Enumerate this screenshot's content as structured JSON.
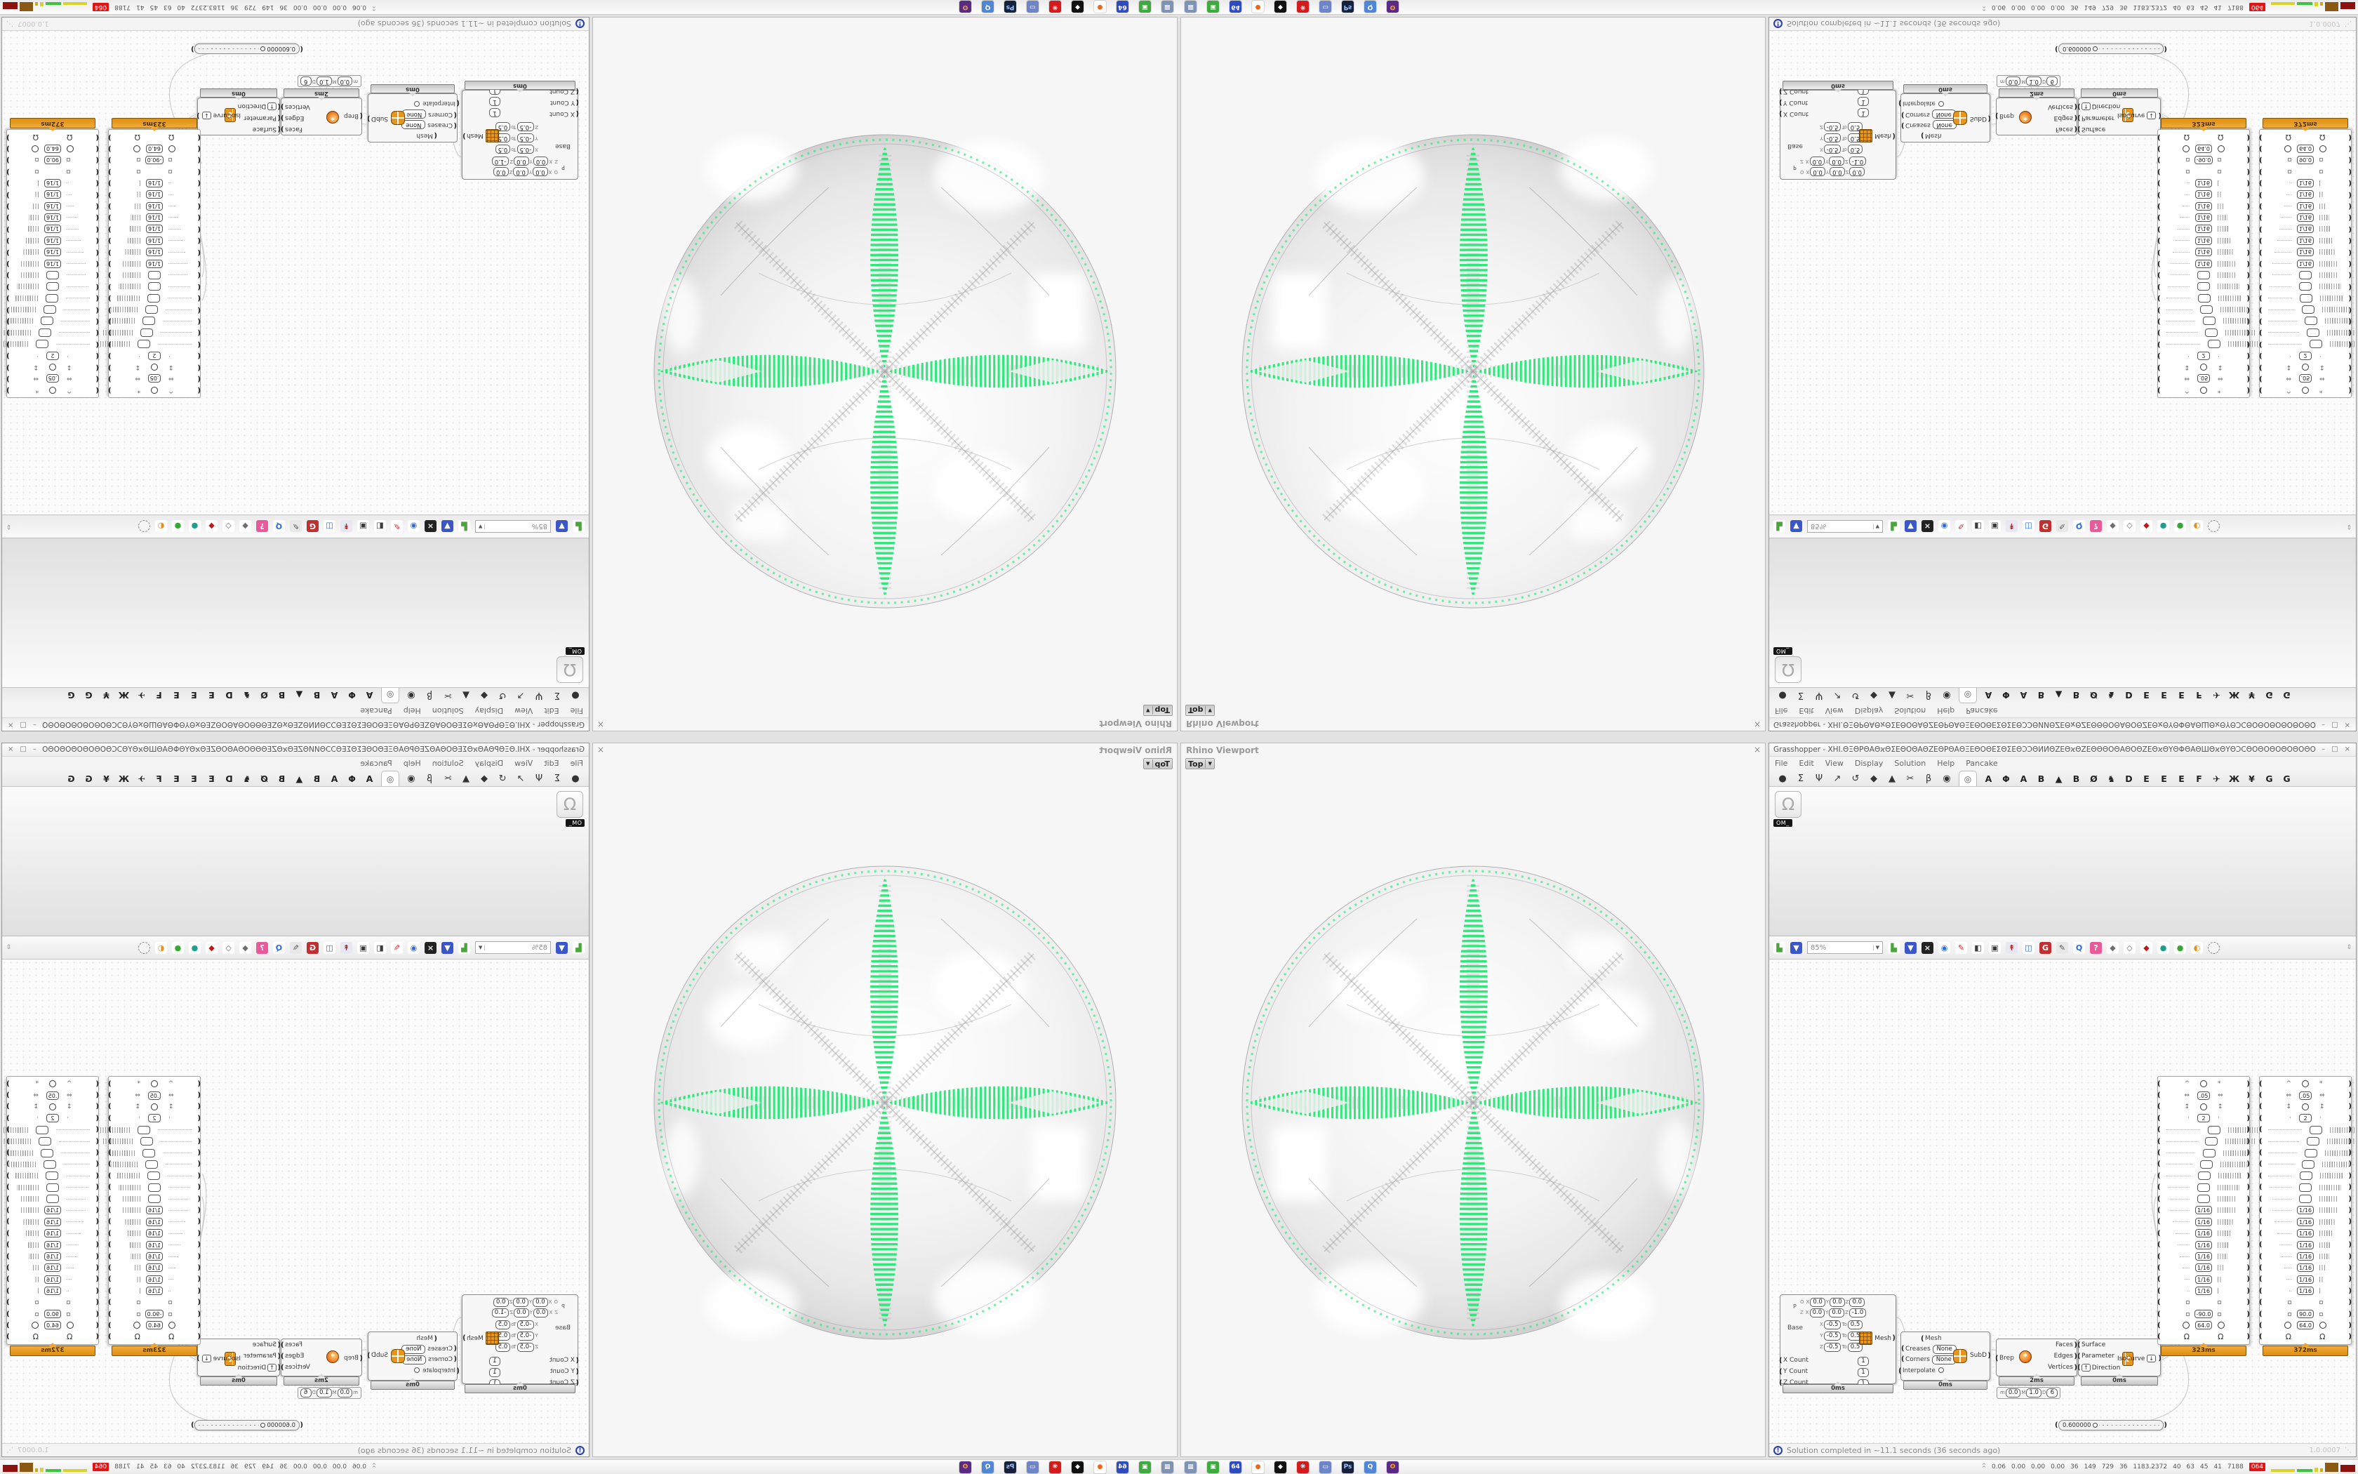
{
  "rhino": {
    "title": "Rhino Viewport",
    "viewport": "Top",
    "dropdown_arrow": "▼",
    "close": "×"
  },
  "gh": {
    "title": "Grasshopper - ΧΗΙ.ΘΞΘΡΘΑΘϰΘΣΕΘΟΘΑΘΖΕΘΡΘΑΘΞΕΘΟΘΕΣΘΣΕΘϽϽΘИИΘΖΕΘϰΘΖΕΘΘΘΟΘΑΘΟΘΖΕΘϰΘΥΘΦΘΑΘШΘϰΘΥΘϽϹΘΟΘΟΘΟΘΟΘΟΘΟΘΟΘΟΘΟΘΟΘΟΘΟΘΟΘΟΘΟΘΟΘΟ…",
    "window_buttons": [
      "–",
      "□",
      "×"
    ],
    "menu": [
      "File",
      "Edit",
      "View",
      "Display",
      "Solution",
      "Help",
      "Pancake"
    ],
    "category_tabs": [
      "●",
      "Σ",
      "Ψ",
      "↗",
      "↺",
      "◆",
      "▲",
      "✂",
      "β",
      "◉"
    ],
    "selected_tab": "◎",
    "plugin_tabs": [
      "A",
      "Φ",
      "A",
      "B",
      "▲",
      "B",
      "Ø",
      "♞",
      "D",
      "E",
      "E",
      "E",
      "F",
      "✈",
      "Ж",
      "¥",
      "G",
      "G"
    ],
    "palette": {
      "item_glyph": "Ω",
      "item_label": "OM_"
    },
    "toolbar": {
      "zoom": "85%",
      "icons": [
        {
          "name": "open-file-icon",
          "glyph": "▙",
          "bg": "#ffffff",
          "fg": "#4aa53c"
        },
        {
          "name": "save-file-icon",
          "glyph": "▼",
          "bg": "#3a56c8",
          "fg": "#ffffff"
        },
        {
          "name": "zoom-extents-icon",
          "glyph": "×",
          "bg": "#222222",
          "fg": "#ffffff"
        },
        {
          "name": "preview-eye-icon",
          "glyph": "◉",
          "bg": "#ffffff",
          "fg": "#2b6bd8"
        },
        {
          "name": "paint-brush-icon",
          "glyph": "✎",
          "bg": "#ffffff",
          "fg": "#c82222"
        },
        {
          "name": "preview-plug-icon",
          "glyph": "◧",
          "bg": "#ffffff",
          "fg": "#3a3a3a"
        },
        {
          "name": "camera-icon",
          "glyph": "▣",
          "bg": "#ffffff",
          "fg": "#3a3a3a"
        },
        {
          "name": "remote-control-icon",
          "glyph": "↟",
          "bg": "#e8e8f4",
          "fg": "#b02020"
        },
        {
          "name": "web-doc-icon",
          "glyph": "◫",
          "bg": "#ffffff",
          "fg": "#2b6bd8"
        },
        {
          "name": "gha-installer-icon",
          "glyph": "G",
          "bg": "#c03030",
          "fg": "#ffffff"
        },
        {
          "name": "annotate-icon",
          "glyph": "✎",
          "bg": "#e8e8e8",
          "fg": "#555555"
        },
        {
          "name": "finder-icon",
          "glyph": "Q",
          "bg": "#ffffff",
          "fg": "#2b6bd8"
        },
        {
          "name": "help-package-icon",
          "glyph": "?",
          "bg": "#e85a9a",
          "fg": "#ffffff"
        },
        {
          "name": "cluster-gray-icon",
          "glyph": "◆",
          "bg": "#ffffff",
          "fg": "#6e6e6e"
        },
        {
          "name": "cluster-white-icon",
          "glyph": "◇",
          "bg": "#ffffff",
          "fg": "#6e6e6e"
        },
        {
          "name": "jewel-red-icon",
          "glyph": "◆",
          "bg": "#ffffff",
          "fg": "#c01818"
        },
        {
          "name": "knob-teal-icon",
          "glyph": "●",
          "bg": "#ffffff",
          "fg": "#1f9e8e"
        },
        {
          "name": "knob-green-icon",
          "glyph": "●",
          "bg": "#ffffff",
          "fg": "#35a832"
        },
        {
          "name": "knob-orange-icon",
          "glyph": "◐",
          "bg": "#ffffff",
          "fg": "#e09020"
        },
        {
          "name": "lasso-select-icon",
          "glyph": "",
          "bg": "#f5f5f5",
          "fg": "#888888"
        }
      ],
      "scroll_nub": "⇕"
    },
    "status": {
      "icon": "!",
      "text": "Solution completed in ~11.1 seconds (36 seconds ago)",
      "version": "1.0.0007",
      "grip": "⋱"
    },
    "canvas": {
      "meshbox": {
        "p_label": "P",
        "plane_rows": [
          {
            "k": "O",
            "cells": [
              [
                "X",
                "0.0"
              ],
              [
                "Y",
                "0.0"
              ],
              [
                "Z",
                "0.0"
              ]
            ]
          },
          {
            "k": "Z",
            "cells": [
              [
                "X",
                "0.0"
              ],
              [
                "Y",
                "0.0"
              ],
              [
                "Z",
                "-1.0"
              ]
            ]
          }
        ],
        "base_label": "Base",
        "to_label": "To",
        "domains": [
          [
            "X",
            "-0.5",
            "0.5"
          ],
          [
            "Y",
            "-0.5",
            "0.5"
          ],
          [
            "Z",
            "-0.5",
            "0.5"
          ]
        ],
        "counts": [
          [
            "X Count",
            "1"
          ],
          [
            "Y Count",
            "1"
          ],
          [
            "Z Count",
            "1"
          ]
        ],
        "output": "Mesh",
        "time": "0ms"
      },
      "subd": {
        "header": "Mesh",
        "rows": [
          [
            "Creases",
            "None"
          ],
          [
            "Corners",
            "None"
          ]
        ],
        "toggle_label": "Interpolate",
        "output": "SubD",
        "time": "0ms"
      },
      "brep": {
        "input": "Brep",
        "outputs": [
          "Faces",
          "Edges",
          "Vertices"
        ],
        "time": "2ms",
        "mini": [
          [
            "m",
            "0.0"
          ],
          [
            "M",
            "1.0"
          ],
          [
            "D",
            "6"
          ]
        ]
      },
      "iso": {
        "inputs": [
          "Surface",
          "Parameter",
          "Direction"
        ],
        "direction_flip": "↑",
        "icon_letter": "t",
        "output": "IsoCurve",
        "output_button": "↓",
        "time": "0ms"
      },
      "slider": {
        "value": "0.600000"
      },
      "panels": {
        "rows": [
          {
            "L": "^",
            "C": "o",
            "R": "*"
          },
          {
            "L": "⇔",
            "B": ".05",
            "R": "⇔"
          },
          {
            "L": "↕",
            "C": "o",
            "R": "↕"
          },
          {
            "L": "·",
            "B": "2",
            "R": "·"
          },
          {
            "D": 14,
            "B": "",
            "S": 14
          },
          {
            "D": 13,
            "B": "",
            "S": 13
          },
          {
            "D": 12,
            "B": "",
            "S": 12
          },
          {
            "D": 11,
            "B": "",
            "S": 11
          },
          {
            "D": 10,
            "B": "",
            "S": 10
          },
          {
            "D": 9,
            "B": "",
            "S": 9
          },
          {
            "D": 8,
            "B": "",
            "S": 8
          },
          {
            "D": 8,
            "B": "1/16",
            "S": 8
          },
          {
            "D": 7,
            "B": "1/16",
            "S": 7
          },
          {
            "D": 6,
            "B": "1/16",
            "S": 6
          },
          {
            "D": 5,
            "B": "1/16",
            "S": 5
          },
          {
            "D": 4,
            "B": "1/16",
            "S": 4
          },
          {
            "D": 3,
            "B": "1/16",
            "S": 3
          },
          {
            "D": 2,
            "B": "1/16",
            "S": 2
          },
          {
            "D": 1,
            "B": "1/16",
            "S": 1
          },
          {
            "L": "▫",
            "R": "▫"
          },
          {
            "L": "▫",
            "B": "@",
            "R": "▫"
          },
          {
            "L": "o",
            "B": "64.0",
            "R": "o"
          },
          {
            "L": "Ω",
            "R": "Ω"
          }
        ],
        "a": {
          "angle": "-90.0",
          "time": "323ms"
        },
        "b": {
          "angle": "90.0",
          "time": "372ms"
        }
      }
    }
  },
  "taskbar": {
    "icons": [
      {
        "name": "display-app-icon",
        "glyph": "▦",
        "bg": "#7f93b5",
        "fg": "#ffffff"
      },
      {
        "name": "package-app-icon",
        "glyph": "▣",
        "bg": "#3faa3f",
        "fg": "#ffffff"
      },
      {
        "name": "b64-floppy-icon",
        "glyph": "64",
        "bg": "#2f4bc0",
        "fg": "#ffffff"
      },
      {
        "name": "firefox-icon",
        "glyph": "●",
        "bg": "#ffffff",
        "fg": "#e8681f"
      },
      {
        "name": "inkscape-bird-icon",
        "glyph": "◆",
        "bg": "#111111",
        "fg": "#ffffff"
      },
      {
        "name": "red-badge-icon",
        "glyph": "❋",
        "bg": "#d41a1a",
        "fg": "#ffffff"
      },
      {
        "name": "window-app-icon",
        "glyph": "▭",
        "bg": "#6e86c8",
        "fg": "#ffffff"
      },
      {
        "name": "photoshop-icon",
        "glyph": "Ps",
        "bg": "#16213e",
        "fg": "#9fc4ff"
      },
      {
        "name": "chat-app-icon",
        "glyph": "Q",
        "bg": "#4f86d6",
        "fg": "#ffffff"
      },
      {
        "name": "owl-app-icon",
        "glyph": "ʘ",
        "bg": "#5a2a86",
        "fg": "#f0a030"
      }
    ],
    "tray": {
      "expander": "^",
      "values": [
        "0.06",
        "0.00",
        "0.00",
        "0.00",
        "36",
        "149",
        "729",
        "36",
        "1183.2372",
        "40",
        "63",
        "45",
        "41",
        "7188"
      ],
      "alert": "064",
      "alert_bg": "#e01616",
      "blocks": [
        {
          "c": "#d8d22c",
          "w": 34,
          "h": 4
        },
        {
          "c": "#3fc43f",
          "w": 22,
          "h": 4
        },
        {
          "c": "#d8d22c",
          "w": 5,
          "h": 6
        },
        {
          "c": "#caa81e",
          "w": 4,
          "h": 5
        },
        {
          "c": "#8a5a13",
          "w": 19,
          "h": 13
        },
        {
          "c": "#8c1210",
          "w": 21,
          "h": 10
        }
      ]
    }
  }
}
